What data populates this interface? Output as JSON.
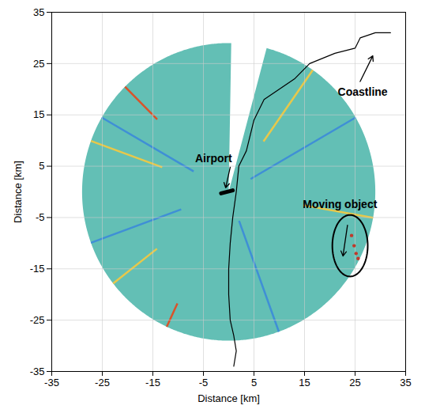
{
  "chart_data": {
    "type": "radar_ppi",
    "xlabel": "Distance [km]",
    "ylabel": "Distance [km]",
    "xlim": [
      -35,
      35
    ],
    "ylim": [
      -35,
      35
    ],
    "xticks": [
      -35,
      -25,
      -15,
      -5,
      5,
      15,
      25,
      35
    ],
    "yticks": [
      -35,
      -25,
      -15,
      -5,
      5,
      15,
      25,
      35
    ],
    "grid": true,
    "sector": {
      "radius": 29,
      "gap_start_deg": 1,
      "gap_end_deg": 15,
      "color": "#63bfb5"
    },
    "streaks": [
      {
        "azimuth_deg": 315,
        "r0": 20,
        "r1": 29,
        "color": "#d9532a"
      },
      {
        "azimuth_deg": 290,
        "r0": 14,
        "r1": 29,
        "color": "#e8c84a"
      },
      {
        "azimuth_deg": 300,
        "r0": 8,
        "r1": 29,
        "color": "#3f8fd6"
      },
      {
        "azimuth_deg": 250,
        "r0": 10,
        "r1": 29,
        "color": "#3f8fd6"
      },
      {
        "azimuth_deg": 232,
        "r0": 18,
        "r1": 29,
        "color": "#e8c84a"
      },
      {
        "azimuth_deg": 205,
        "r0": 24,
        "r1": 29,
        "color": "#d9532a"
      },
      {
        "azimuth_deg": 160,
        "r0": 6,
        "r1": 29,
        "color": "#3f8fd6"
      },
      {
        "azimuth_deg": 100,
        "r0": 15,
        "r1": 29,
        "color": "#e8c84a"
      },
      {
        "azimuth_deg": 60,
        "r0": 5,
        "r1": 29,
        "color": "#3f8fd6"
      },
      {
        "azimuth_deg": 35,
        "r0": 12,
        "r1": 29,
        "color": "#e8c84a"
      }
    ],
    "coastline": {
      "color": "#000000",
      "x": [
        32,
        29,
        26,
        25,
        21,
        16,
        13,
        10,
        7,
        5,
        3.5,
        2,
        1.5,
        0.8,
        0.3,
        0,
        0,
        0.3,
        1,
        1.5,
        1
      ],
      "y": [
        31,
        31,
        30,
        28,
        27,
        25,
        22,
        20,
        18,
        14,
        8,
        5,
        0,
        -5,
        -10,
        -15,
        -20,
        -25,
        -28,
        -31,
        -34
      ]
    },
    "airport": {
      "x": [
        -1.5,
        0.8
      ],
      "y": [
        -0.3,
        0.3
      ],
      "color": "#000000"
    },
    "moving_object": {
      "x": [
        24.3,
        24.8,
        25.2,
        25.6
      ],
      "y": [
        -8.5,
        -10.5,
        -12,
        -13
      ],
      "color": "#c0392b"
    },
    "ellipse": {
      "cx": 24,
      "cy": -10.5,
      "rx": 3.5,
      "ry": 6
    },
    "annotations": [
      {
        "text": "Airport",
        "x": -3,
        "y": 6.5,
        "from": [
          0.3,
          4.8
        ],
        "to": [
          -0.6,
          0.8
        ]
      },
      {
        "text": "Coastline",
        "x": 26.5,
        "y": 19.5,
        "from": [
          26,
          21.5
        ],
        "to": [
          28.5,
          26.5
        ]
      },
      {
        "text": "Moving object",
        "x": 22,
        "y": -2.5,
        "from": [
          23.5,
          -6.5
        ],
        "to": [
          22.6,
          -12.5
        ]
      }
    ]
  }
}
